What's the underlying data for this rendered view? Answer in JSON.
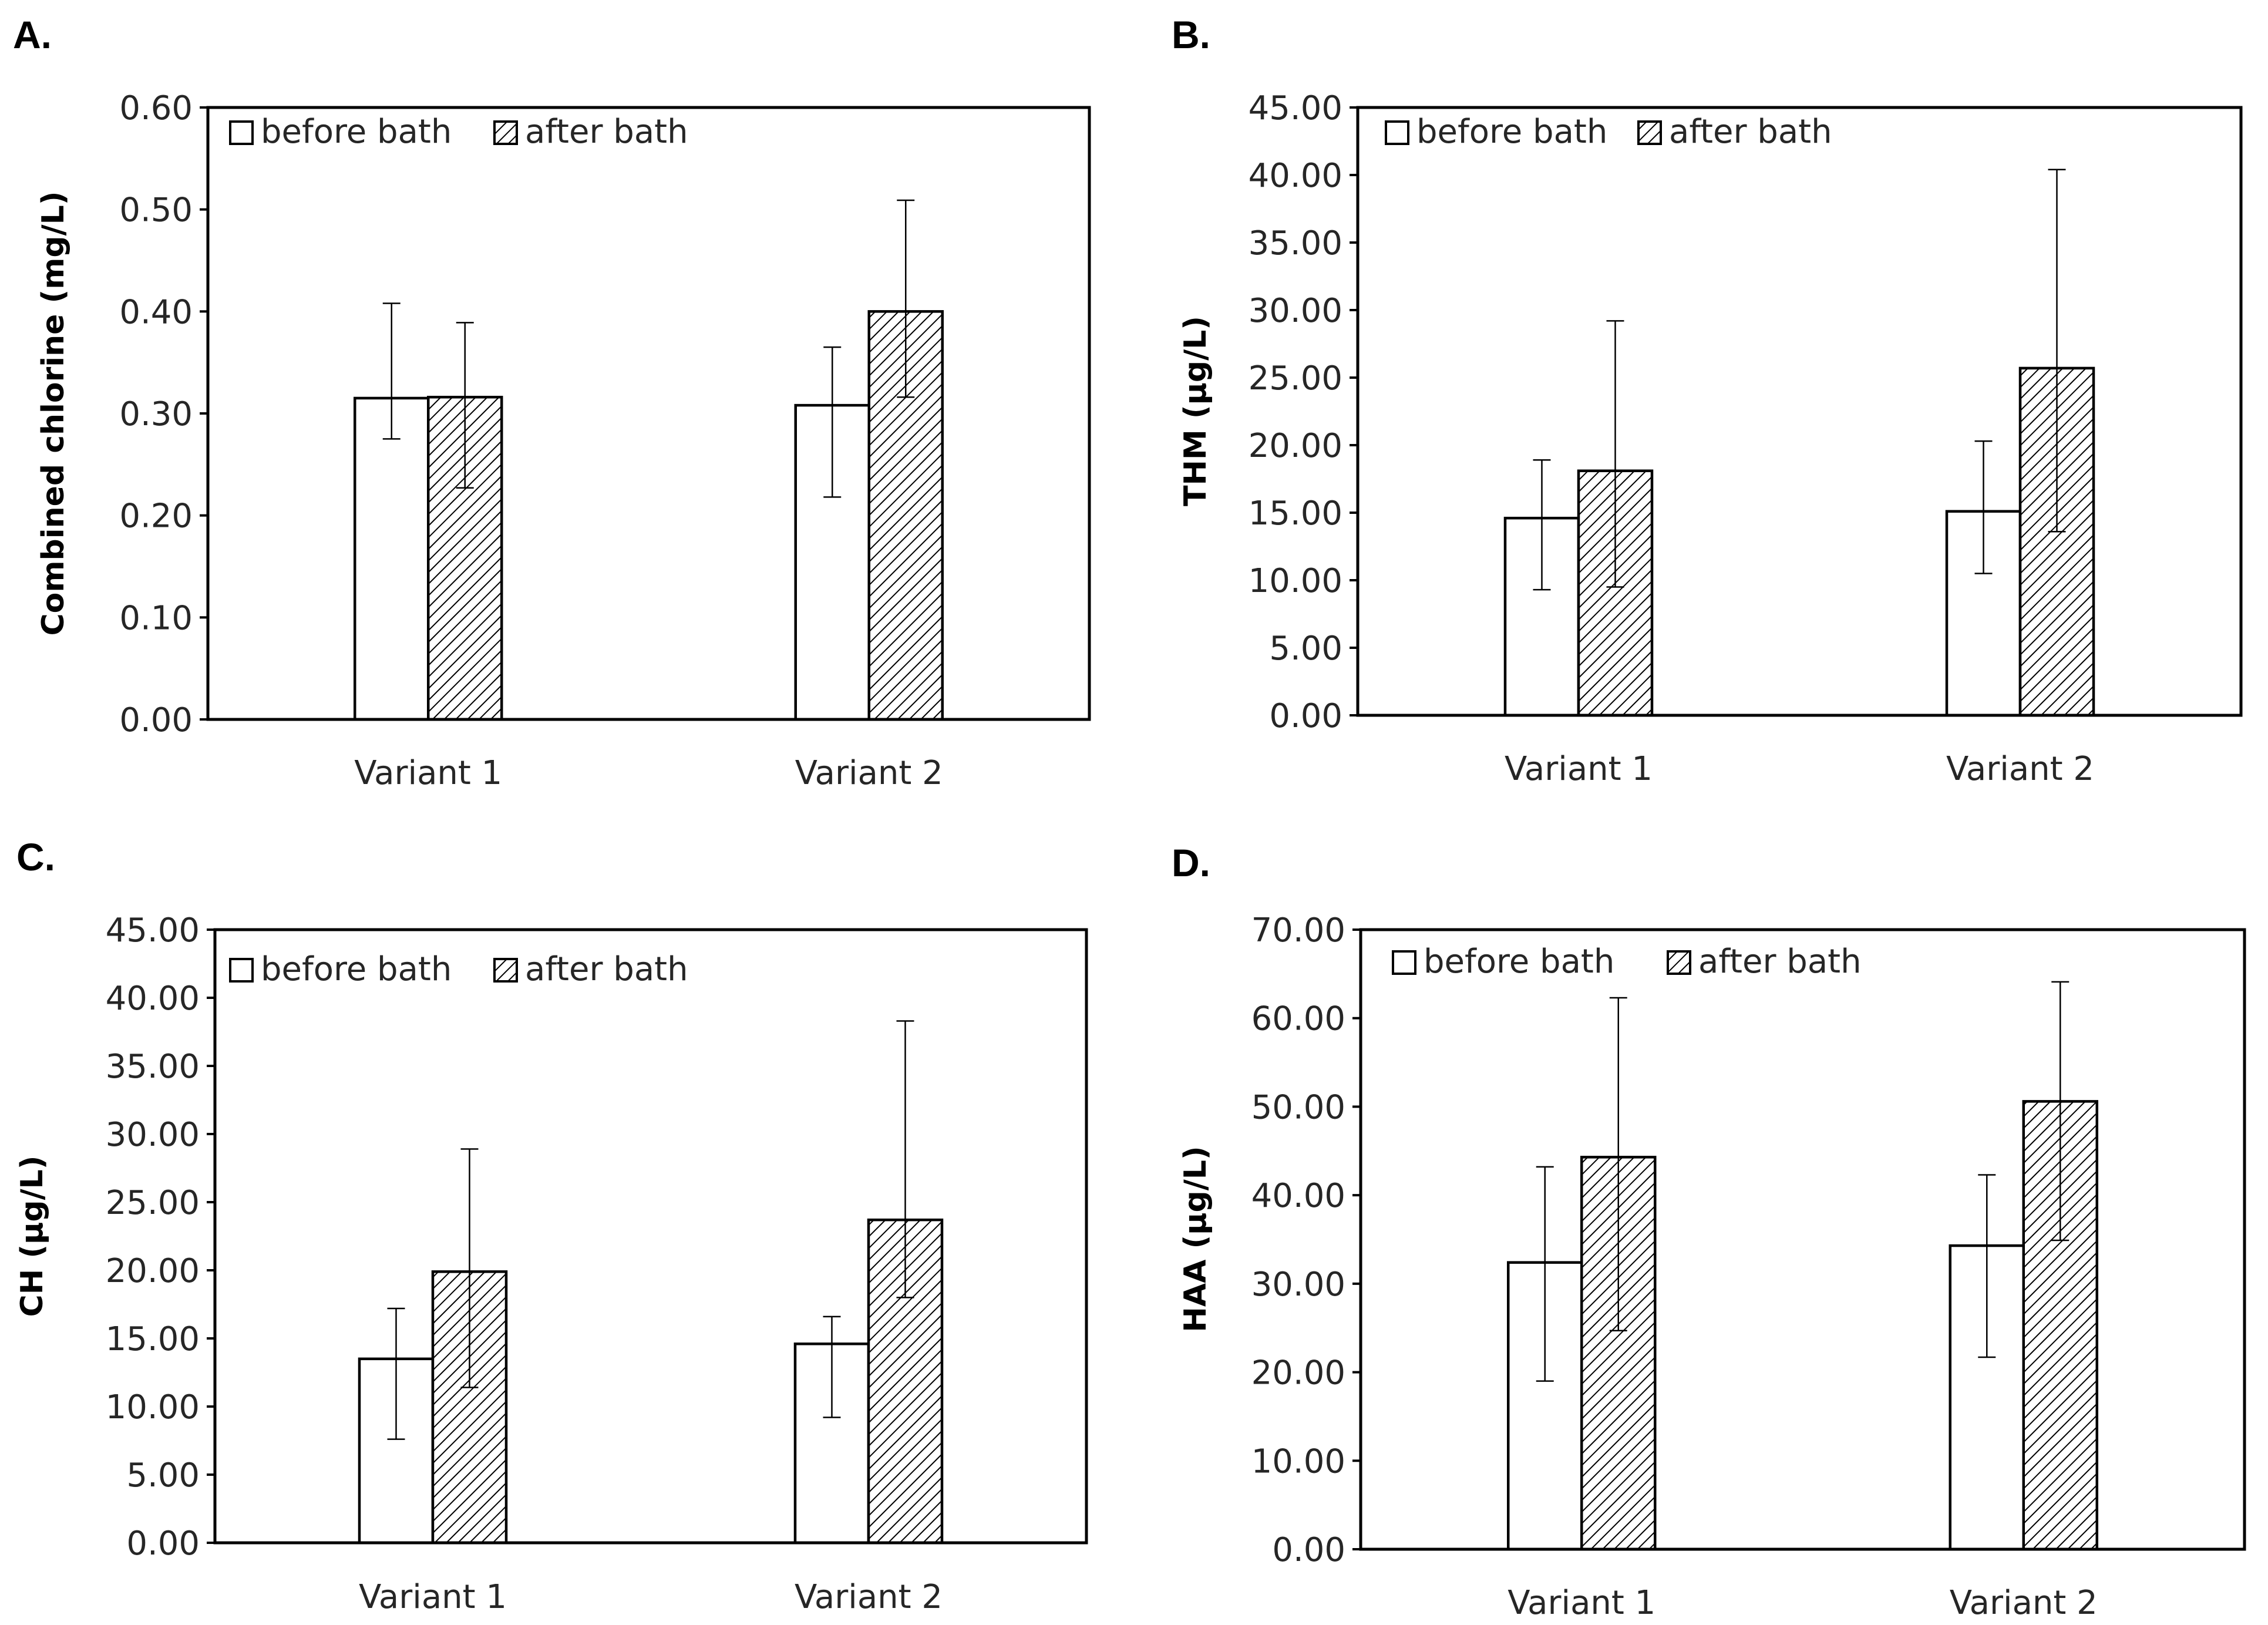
{
  "chart_data": [
    {
      "panel": "A.",
      "type": "bar",
      "ylabel": "Combined chlorine (mg/L)",
      "ylim": [
        0,
        0.6
      ],
      "yticks": [
        "0.00",
        "0.10",
        "0.20",
        "0.30",
        "0.40",
        "0.50",
        "0.60"
      ],
      "categories": [
        "Variant 1",
        "Variant 2"
      ],
      "legend": [
        "before bath",
        "after bath"
      ],
      "series": [
        {
          "name": "before bath",
          "values": [
            0.315,
            0.308
          ],
          "err_low": [
            0.275,
            0.218
          ],
          "err_high": [
            0.408,
            0.365
          ]
        },
        {
          "name": "after bath",
          "values": [
            0.316,
            0.4
          ],
          "err_low": [
            0.227,
            0.316
          ],
          "err_high": [
            0.389,
            0.509
          ]
        }
      ]
    },
    {
      "panel": "B.",
      "type": "bar",
      "ylabel": "THM (µg/L)",
      "ylim": [
        0,
        45
      ],
      "yticks": [
        "0.00",
        "5.00",
        "10.00",
        "15.00",
        "20.00",
        "25.00",
        "30.00",
        "35.00",
        "40.00",
        "45.00"
      ],
      "categories": [
        "Variant 1",
        "Variant 2"
      ],
      "legend": [
        "before bath",
        "after bath"
      ],
      "series": [
        {
          "name": "before bath",
          "values": [
            14.6,
            15.1
          ],
          "err_low": [
            9.3,
            10.5
          ],
          "err_high": [
            18.9,
            20.3
          ]
        },
        {
          "name": "after bath",
          "values": [
            18.1,
            25.7
          ],
          "err_low": [
            9.5,
            13.6
          ],
          "err_high": [
            29.2,
            40.4
          ]
        }
      ]
    },
    {
      "panel": "C.",
      "type": "bar",
      "ylabel": "CH (µg/L)",
      "ylim": [
        0,
        45
      ],
      "yticks": [
        "0.00",
        "5.00",
        "10.00",
        "15.00",
        "20.00",
        "25.00",
        "30.00",
        "35.00",
        "40.00",
        "45.00"
      ],
      "categories": [
        "Variant 1",
        "Variant 2"
      ],
      "legend": [
        "before bath",
        "after bath"
      ],
      "series": [
        {
          "name": "before bath",
          "values": [
            13.5,
            14.6
          ],
          "err_low": [
            7.6,
            9.2
          ],
          "err_high": [
            17.2,
            16.6
          ]
        },
        {
          "name": "after bath",
          "values": [
            19.9,
            23.7
          ],
          "err_low": [
            11.4,
            18.0
          ],
          "err_high": [
            28.9,
            38.3
          ]
        }
      ]
    },
    {
      "panel": "D.",
      "type": "bar",
      "ylabel": "HAA (µg/L)",
      "ylim": [
        0,
        70
      ],
      "yticks": [
        "0.00",
        "10.00",
        "20.00",
        "30.00",
        "40.00",
        "50.00",
        "60.00",
        "70.00"
      ],
      "categories": [
        "Variant 1",
        "Variant 2"
      ],
      "legend": [
        "before bath",
        "after bath"
      ],
      "series": [
        {
          "name": "before bath",
          "values": [
            32.4,
            34.3
          ],
          "err_low": [
            19.0,
            21.7
          ],
          "err_high": [
            43.2,
            42.3
          ]
        },
        {
          "name": "after bath",
          "values": [
            44.3,
            50.6
          ],
          "err_low": [
            24.7,
            34.9
          ],
          "err_high": [
            62.3,
            64.1
          ]
        }
      ]
    }
  ]
}
